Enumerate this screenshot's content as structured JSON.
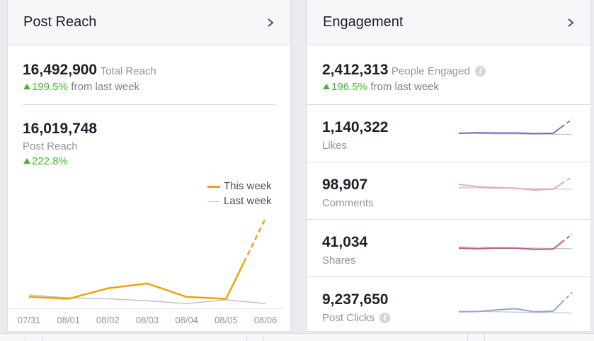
{
  "post_reach": {
    "title": "Post Reach",
    "total_reach_value": "16,492,900",
    "total_reach_label": "Total Reach",
    "total_reach_change": "199.5%",
    "total_reach_change_suffix": "from last week",
    "post_reach_value": "16,019,748",
    "post_reach_label": "Post Reach",
    "post_reach_change": "222.8%"
  },
  "engagement": {
    "title": "Engagement",
    "people_engaged_value": "2,412,313",
    "people_engaged_label": "People Engaged",
    "people_engaged_change": "196.5%",
    "people_engaged_change_suffix": "from last week",
    "metrics": [
      {
        "value": "1,140,322",
        "label": "Likes",
        "color": "#8b6bb1"
      },
      {
        "value": "98,907",
        "label": "Comments",
        "color": "#e5a9c6"
      },
      {
        "value": "41,034",
        "label": "Shares",
        "color": "#c0607f"
      },
      {
        "value": "9,237,650",
        "label": "Post Clicks",
        "color": "#8fa6d1"
      }
    ]
  },
  "colors": {
    "this_week": "#f0a30a",
    "last_week": "#bec3c9",
    "positive": "#42b72a"
  },
  "chart_data": {
    "type": "line",
    "title": "Post Reach",
    "categories": [
      "07/31",
      "08/01",
      "08/02",
      "08/03",
      "08/04",
      "08/05",
      "08/06"
    ],
    "series": [
      {
        "name": "This week",
        "values": [
          1.2,
          1.0,
          2.1,
          2.6,
          1.2,
          1.0,
          9.4
        ],
        "style": "solid, last segment dashed"
      },
      {
        "name": "Last week",
        "values": [
          1.4,
          1.1,
          1.0,
          0.8,
          0.5,
          0.9,
          0.5
        ]
      }
    ],
    "ylim": [
      0,
      10
    ],
    "legend": "top-right",
    "xlabel": "",
    "ylabel": ""
  },
  "sparklines": [
    {
      "name": "Likes",
      "this_week": [
        5,
        5.2,
        5.1,
        5.1,
        4.9,
        5.0,
        9.5
      ],
      "last_week": [
        5,
        4.9,
        4.8,
        4.8,
        4.7,
        4.7,
        4.6
      ]
    },
    {
      "name": "Comments",
      "this_week": [
        7,
        6.3,
        6.0,
        5.8,
        5.2,
        5.5,
        9.5
      ],
      "last_week": [
        6,
        5.9,
        5.8,
        5.7,
        5.6,
        5.6,
        5.5
      ]
    },
    {
      "name": "Shares",
      "this_week": [
        5,
        4.8,
        5.0,
        5.0,
        4.6,
        4.7,
        9.5
      ],
      "last_week": [
        5.4,
        5.3,
        5.2,
        5.1,
        5.0,
        4.9,
        4.8
      ]
    },
    {
      "name": "Post Clicks",
      "this_week": [
        3,
        3.1,
        3.6,
        4.0,
        3.0,
        3.2,
        9.2
      ],
      "last_week": [
        3.2,
        3.1,
        3.0,
        2.9,
        2.8,
        2.7,
        2.6
      ]
    }
  ],
  "legend": {
    "this_week": "This week",
    "last_week": "Last week"
  }
}
